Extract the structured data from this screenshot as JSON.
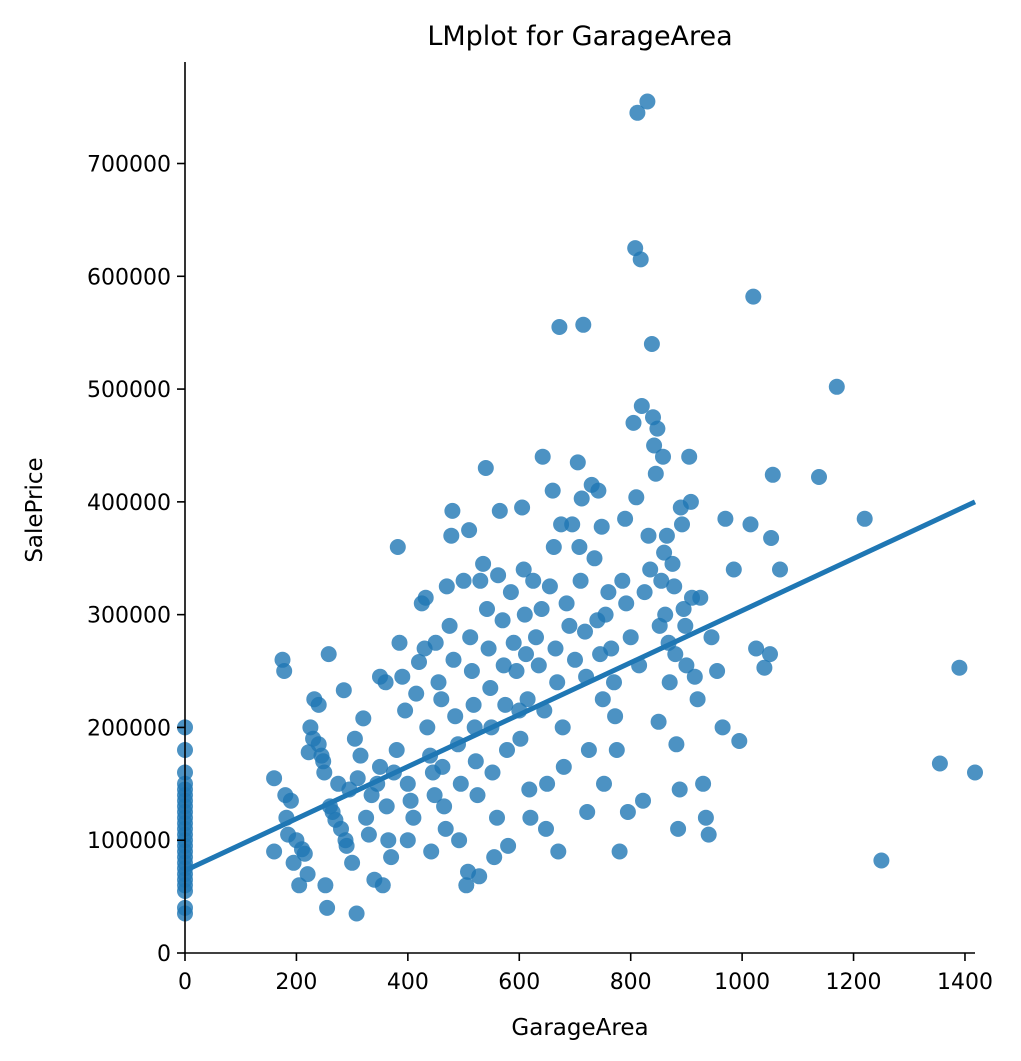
{
  "chart_data": {
    "type": "scatter",
    "title": "LMplot for GarageArea",
    "xlabel": "GarageArea",
    "ylabel": "SalePrice",
    "xlim": [
      0,
      1418
    ],
    "ylim": [
      0,
      790000
    ],
    "x_ticks": [
      0,
      200,
      400,
      600,
      800,
      1000,
      1200,
      1400
    ],
    "y_ticks": [
      0,
      100000,
      200000,
      300000,
      400000,
      500000,
      600000,
      700000
    ],
    "x_tick_labels": [
      "0",
      "200",
      "400",
      "600",
      "800",
      "1000",
      "1200",
      "1400"
    ],
    "y_tick_labels": [
      "0",
      "100000",
      "200000",
      "300000",
      "400000",
      "500000",
      "600000",
      "700000"
    ],
    "grid": false,
    "colors": {
      "points": "#1f77b4",
      "line": "#1f77b4"
    },
    "regression": {
      "x": [
        0,
        1418
      ],
      "y": [
        73000,
        400000
      ]
    },
    "points": [
      [
        0,
        200000
      ],
      [
        0,
        180000
      ],
      [
        0,
        160000
      ],
      [
        0,
        150000
      ],
      [
        0,
        145000
      ],
      [
        0,
        140000
      ],
      [
        0,
        135000
      ],
      [
        0,
        130000
      ],
      [
        0,
        125000
      ],
      [
        0,
        120000
      ],
      [
        0,
        115000
      ],
      [
        0,
        110000
      ],
      [
        0,
        105000
      ],
      [
        0,
        100000
      ],
      [
        0,
        95000
      ],
      [
        0,
        90000
      ],
      [
        0,
        85000
      ],
      [
        0,
        80000
      ],
      [
        0,
        75000
      ],
      [
        0,
        70000
      ],
      [
        0,
        65000
      ],
      [
        0,
        60000
      ],
      [
        0,
        55000
      ],
      [
        0,
        40000
      ],
      [
        0,
        35000
      ],
      [
        160,
        90000
      ],
      [
        160,
        155000
      ],
      [
        175,
        260000
      ],
      [
        178,
        250000
      ],
      [
        180,
        140000
      ],
      [
        182,
        120000
      ],
      [
        185,
        105000
      ],
      [
        190,
        135000
      ],
      [
        195,
        80000
      ],
      [
        200,
        100000
      ],
      [
        205,
        60000
      ],
      [
        210,
        92000
      ],
      [
        215,
        88000
      ],
      [
        220,
        70000
      ],
      [
        222,
        178000
      ],
      [
        225,
        200000
      ],
      [
        230,
        190000
      ],
      [
        232,
        225000
      ],
      [
        240,
        220000
      ],
      [
        240,
        185000
      ],
      [
        245,
        175000
      ],
      [
        248,
        170000
      ],
      [
        250,
        160000
      ],
      [
        252,
        60000
      ],
      [
        255,
        40000
      ],
      [
        258,
        265000
      ],
      [
        260,
        130000
      ],
      [
        265,
        125000
      ],
      [
        270,
        118000
      ],
      [
        275,
        150000
      ],
      [
        280,
        110000
      ],
      [
        285,
        233000
      ],
      [
        288,
        100000
      ],
      [
        290,
        95000
      ],
      [
        295,
        145000
      ],
      [
        300,
        80000
      ],
      [
        305,
        190000
      ],
      [
        308,
        35000
      ],
      [
        310,
        155000
      ],
      [
        315,
        175000
      ],
      [
        320,
        208000
      ],
      [
        325,
        120000
      ],
      [
        330,
        105000
      ],
      [
        335,
        140000
      ],
      [
        340,
        65000
      ],
      [
        345,
        150000
      ],
      [
        350,
        165000
      ],
      [
        350,
        245000
      ],
      [
        355,
        60000
      ],
      [
        360,
        240000
      ],
      [
        362,
        130000
      ],
      [
        365,
        100000
      ],
      [
        370,
        85000
      ],
      [
        375,
        160000
      ],
      [
        380,
        180000
      ],
      [
        382,
        360000
      ],
      [
        385,
        275000
      ],
      [
        390,
        245000
      ],
      [
        395,
        215000
      ],
      [
        400,
        100000
      ],
      [
        400,
        150000
      ],
      [
        405,
        135000
      ],
      [
        410,
        120000
      ],
      [
        415,
        230000
      ],
      [
        420,
        258000
      ],
      [
        425,
        310000
      ],
      [
        430,
        270000
      ],
      [
        432,
        315000
      ],
      [
        435,
        200000
      ],
      [
        440,
        175000
      ],
      [
        442,
        90000
      ],
      [
        445,
        160000
      ],
      [
        448,
        140000
      ],
      [
        450,
        275000
      ],
      [
        455,
        240000
      ],
      [
        460,
        225000
      ],
      [
        462,
        165000
      ],
      [
        465,
        130000
      ],
      [
        468,
        110000
      ],
      [
        470,
        325000
      ],
      [
        475,
        290000
      ],
      [
        478,
        370000
      ],
      [
        480,
        392000
      ],
      [
        482,
        260000
      ],
      [
        485,
        210000
      ],
      [
        490,
        185000
      ],
      [
        492,
        100000
      ],
      [
        495,
        150000
      ],
      [
        500,
        330000
      ],
      [
        505,
        60000
      ],
      [
        508,
        72000
      ],
      [
        510,
        375000
      ],
      [
        512,
        280000
      ],
      [
        515,
        250000
      ],
      [
        518,
        220000
      ],
      [
        520,
        200000
      ],
      [
        522,
        170000
      ],
      [
        525,
        140000
      ],
      [
        528,
        68000
      ],
      [
        530,
        330000
      ],
      [
        535,
        345000
      ],
      [
        540,
        430000
      ],
      [
        542,
        305000
      ],
      [
        545,
        270000
      ],
      [
        548,
        235000
      ],
      [
        550,
        200000
      ],
      [
        552,
        160000
      ],
      [
        555,
        85000
      ],
      [
        560,
        120000
      ],
      [
        562,
        335000
      ],
      [
        565,
        392000
      ],
      [
        570,
        295000
      ],
      [
        572,
        255000
      ],
      [
        575,
        220000
      ],
      [
        578,
        180000
      ],
      [
        580,
        95000
      ],
      [
        585,
        320000
      ],
      [
        590,
        275000
      ],
      [
        595,
        250000
      ],
      [
        600,
        215000
      ],
      [
        602,
        190000
      ],
      [
        605,
        395000
      ],
      [
        608,
        340000
      ],
      [
        610,
        300000
      ],
      [
        612,
        265000
      ],
      [
        615,
        225000
      ],
      [
        618,
        145000
      ],
      [
        620,
        120000
      ],
      [
        625,
        330000
      ],
      [
        630,
        280000
      ],
      [
        635,
        255000
      ],
      [
        640,
        305000
      ],
      [
        642,
        440000
      ],
      [
        645,
        215000
      ],
      [
        648,
        110000
      ],
      [
        650,
        150000
      ],
      [
        655,
        325000
      ],
      [
        660,
        410000
      ],
      [
        662,
        360000
      ],
      [
        665,
        270000
      ],
      [
        668,
        240000
      ],
      [
        670,
        90000
      ],
      [
        672,
        555000
      ],
      [
        675,
        380000
      ],
      [
        678,
        200000
      ],
      [
        680,
        165000
      ],
      [
        685,
        310000
      ],
      [
        690,
        290000
      ],
      [
        695,
        380000
      ],
      [
        700,
        260000
      ],
      [
        705,
        435000
      ],
      [
        708,
        360000
      ],
      [
        710,
        330000
      ],
      [
        712,
        403000
      ],
      [
        715,
        557000
      ],
      [
        718,
        285000
      ],
      [
        720,
        245000
      ],
      [
        722,
        125000
      ],
      [
        725,
        180000
      ],
      [
        730,
        415000
      ],
      [
        735,
        350000
      ],
      [
        740,
        295000
      ],
      [
        742,
        410000
      ],
      [
        745,
        265000
      ],
      [
        748,
        378000
      ],
      [
        750,
        225000
      ],
      [
        752,
        150000
      ],
      [
        755,
        300000
      ],
      [
        760,
        320000
      ],
      [
        765,
        270000
      ],
      [
        770,
        240000
      ],
      [
        772,
        210000
      ],
      [
        775,
        180000
      ],
      [
        780,
        90000
      ],
      [
        785,
        330000
      ],
      [
        790,
        385000
      ],
      [
        792,
        310000
      ],
      [
        795,
        125000
      ],
      [
        800,
        280000
      ],
      [
        805,
        470000
      ],
      [
        808,
        625000
      ],
      [
        810,
        404000
      ],
      [
        812,
        745000
      ],
      [
        815,
        255000
      ],
      [
        818,
        615000
      ],
      [
        820,
        485000
      ],
      [
        822,
        135000
      ],
      [
        825,
        320000
      ],
      [
        830,
        755000
      ],
      [
        832,
        370000
      ],
      [
        835,
        340000
      ],
      [
        838,
        540000
      ],
      [
        840,
        475000
      ],
      [
        842,
        450000
      ],
      [
        845,
        425000
      ],
      [
        848,
        465000
      ],
      [
        850,
        205000
      ],
      [
        852,
        290000
      ],
      [
        855,
        330000
      ],
      [
        858,
        440000
      ],
      [
        860,
        355000
      ],
      [
        862,
        300000
      ],
      [
        865,
        370000
      ],
      [
        868,
        275000
      ],
      [
        870,
        240000
      ],
      [
        875,
        345000
      ],
      [
        878,
        325000
      ],
      [
        880,
        265000
      ],
      [
        882,
        185000
      ],
      [
        885,
        110000
      ],
      [
        888,
        145000
      ],
      [
        890,
        395000
      ],
      [
        892,
        380000
      ],
      [
        895,
        305000
      ],
      [
        898,
        290000
      ],
      [
        900,
        255000
      ],
      [
        905,
        440000
      ],
      [
        908,
        400000
      ],
      [
        910,
        315000
      ],
      [
        915,
        245000
      ],
      [
        920,
        225000
      ],
      [
        925,
        315000
      ],
      [
        930,
        150000
      ],
      [
        935,
        120000
      ],
      [
        940,
        105000
      ],
      [
        945,
        280000
      ],
      [
        955,
        250000
      ],
      [
        965,
        200000
      ],
      [
        970,
        385000
      ],
      [
        985,
        340000
      ],
      [
        995,
        188000
      ],
      [
        1015,
        380000
      ],
      [
        1020,
        582000
      ],
      [
        1025,
        270000
      ],
      [
        1040,
        253000
      ],
      [
        1050,
        265000
      ],
      [
        1052,
        368000
      ],
      [
        1055,
        424000
      ],
      [
        1068,
        340000
      ],
      [
        1138,
        422000
      ],
      [
        1170,
        502000
      ],
      [
        1220,
        385000
      ],
      [
        1250,
        82000
      ],
      [
        1355,
        168000
      ],
      [
        1390,
        253000
      ],
      [
        1418,
        160000
      ]
    ]
  }
}
